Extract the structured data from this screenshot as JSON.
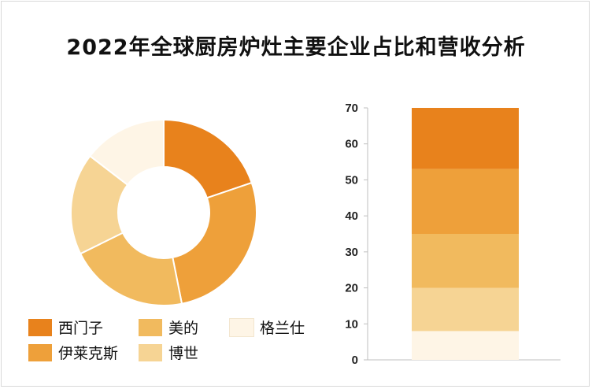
{
  "title": "2022年全球厨房炉灶主要企业占比和营收分析",
  "chart_data": [
    {
      "type": "pie",
      "variant": "donut",
      "labels": [
        "西门子",
        "伊莱克斯",
        "美的",
        "博世",
        "格兰仕"
      ],
      "values": [
        19,
        26,
        20,
        17,
        14
      ],
      "colors": [
        "#E8821C",
        "#EEA03A",
        "#F1BA5E",
        "#F6D494",
        "#FEF5E6"
      ],
      "legend": "bottom-left"
    },
    {
      "type": "bar",
      "variant": "stacked",
      "categories": [
        ""
      ],
      "series": [
        {
          "name": "格兰仕",
          "values": [
            8
          ]
        },
        {
          "name": "博世",
          "values": [
            12
          ]
        },
        {
          "name": "美的",
          "values": [
            15
          ]
        },
        {
          "name": "伊莱克斯",
          "values": [
            18
          ]
        },
        {
          "name": "西门子",
          "values": [
            17
          ]
        }
      ],
      "colors": [
        "#FEF5E6",
        "#F6D494",
        "#F1BA5E",
        "#EEA03A",
        "#E8821C"
      ],
      "ylim": [
        0,
        70
      ],
      "yticks": [
        0,
        10,
        20,
        30,
        40,
        50,
        60,
        70
      ],
      "grid": false
    }
  ],
  "legend": [
    {
      "label": "西门子",
      "color": "#E8821C"
    },
    {
      "label": "美的",
      "color": "#F1BA5E"
    },
    {
      "label": "格兰仕",
      "color": "#FEF5E6"
    },
    {
      "label": "伊莱克斯",
      "color": "#EEA03A"
    },
    {
      "label": "博世",
      "color": "#F6D494"
    }
  ]
}
